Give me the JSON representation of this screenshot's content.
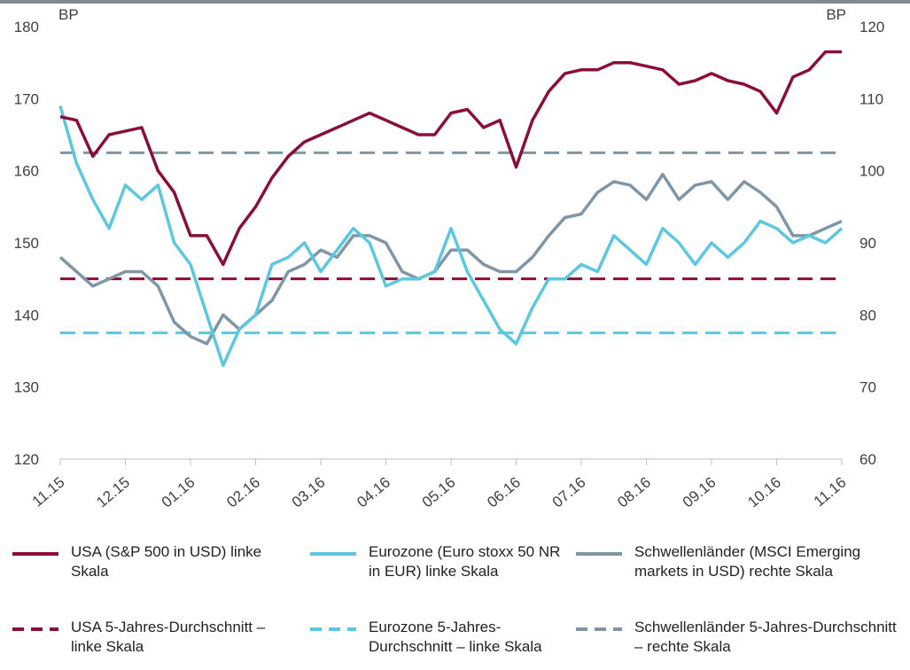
{
  "chart_data": {
    "type": "line",
    "y_unit_left": "BP",
    "y_unit_right": "BP",
    "xlim": [
      0,
      12
    ],
    "xticks": [
      {
        "value": 0,
        "label": "11.15"
      },
      {
        "value": 1,
        "label": "12.15"
      },
      {
        "value": 2,
        "label": "01.16"
      },
      {
        "value": 3,
        "label": "02.16"
      },
      {
        "value": 4,
        "label": "03.16"
      },
      {
        "value": 5,
        "label": "04.16"
      },
      {
        "value": 6,
        "label": "05.16"
      },
      {
        "value": 7,
        "label": "06.16"
      },
      {
        "value": 8,
        "label": "07.16"
      },
      {
        "value": 9,
        "label": "08.16"
      },
      {
        "value": 10,
        "label": "09.16"
      },
      {
        "value": 11,
        "label": "10.16"
      },
      {
        "value": 12,
        "label": "11.16"
      }
    ],
    "ylim": [
      120,
      180
    ],
    "yticks": [
      120,
      130,
      140,
      150,
      160,
      170,
      180
    ],
    "y2lim": [
      60,
      120
    ],
    "y2ticks": [
      60,
      70,
      80,
      90,
      100,
      110,
      120
    ],
    "x": [
      0,
      0.25,
      0.5,
      0.75,
      1,
      1.25,
      1.5,
      1.75,
      2,
      2.25,
      2.5,
      2.75,
      3,
      3.25,
      3.5,
      3.75,
      4,
      4.25,
      4.5,
      4.75,
      5,
      5.25,
      5.5,
      5.75,
      6,
      6.25,
      6.5,
      6.75,
      7,
      7.25,
      7.5,
      7.75,
      8,
      8.25,
      8.5,
      8.75,
      9,
      9.25,
      9.5,
      9.75,
      10,
      10.25,
      10.5,
      10.75,
      11,
      11.25,
      11.5,
      11.75,
      12
    ],
    "series": [
      {
        "name": "USA (S&P 500 in USD) linke Skala",
        "color": "#8b0d3a",
        "axis": "y",
        "values": [
          167.5,
          167,
          162,
          165,
          165.5,
          166,
          160,
          157,
          151,
          151,
          147,
          152,
          155,
          159,
          162,
          164,
          165,
          166,
          167,
          168,
          167,
          166,
          165,
          165,
          168,
          168.5,
          166,
          167,
          160.5,
          167,
          171,
          173.5,
          174,
          174,
          175,
          175,
          174.5,
          174,
          172,
          172.5,
          173.5,
          172.5,
          172,
          171,
          168,
          173,
          174,
          176.5,
          176.5
        ]
      },
      {
        "name": "Eurozone (Euro stoxx 50 NR in EUR) linke Skala",
        "color": "#5bc8e0",
        "axis": "y",
        "values": [
          169,
          161,
          156,
          152,
          158,
          156,
          158,
          150,
          147,
          140,
          133,
          138,
          140,
          147,
          148,
          150,
          146,
          149,
          152,
          150,
          144,
          145,
          145,
          146,
          152,
          146,
          142,
          138,
          136,
          141,
          145,
          145,
          147,
          146,
          151,
          149,
          147,
          152,
          150,
          147,
          150,
          148,
          150,
          153,
          152,
          150,
          151,
          150,
          152
        ]
      },
      {
        "name": "Schwellenländer (MSCI Emerging markets in USD) rechte Skala",
        "color": "#7f96a6",
        "axis": "y2",
        "values": [
          88,
          86,
          84,
          85,
          86,
          86,
          84,
          79,
          77,
          76,
          80,
          78,
          80,
          82,
          86,
          87,
          89,
          88,
          91,
          91,
          90,
          86,
          85,
          86,
          89,
          89,
          87,
          86,
          86,
          88,
          91,
          93.5,
          94,
          97,
          98.5,
          98,
          96,
          99.5,
          96,
          98,
          98.5,
          96,
          98.5,
          97,
          95,
          91,
          91,
          92,
          93
        ]
      }
    ],
    "reference_lines": [
      {
        "name": "USA 5-Jahres-Durchschnitt – linke Skala",
        "color": "#8b0d3a",
        "value": 145,
        "axis": "y"
      },
      {
        "name": "Eurozone 5-Jahres-Durchschnitt – linke Skala",
        "color": "#5bc8e0",
        "value": 137.5,
        "axis": "y"
      },
      {
        "name": "Schwellenländer 5-Jahres-Durchschnitt – rechte Skala",
        "color": "#7f96a6",
        "value": 102.5,
        "axis": "y2"
      }
    ]
  }
}
